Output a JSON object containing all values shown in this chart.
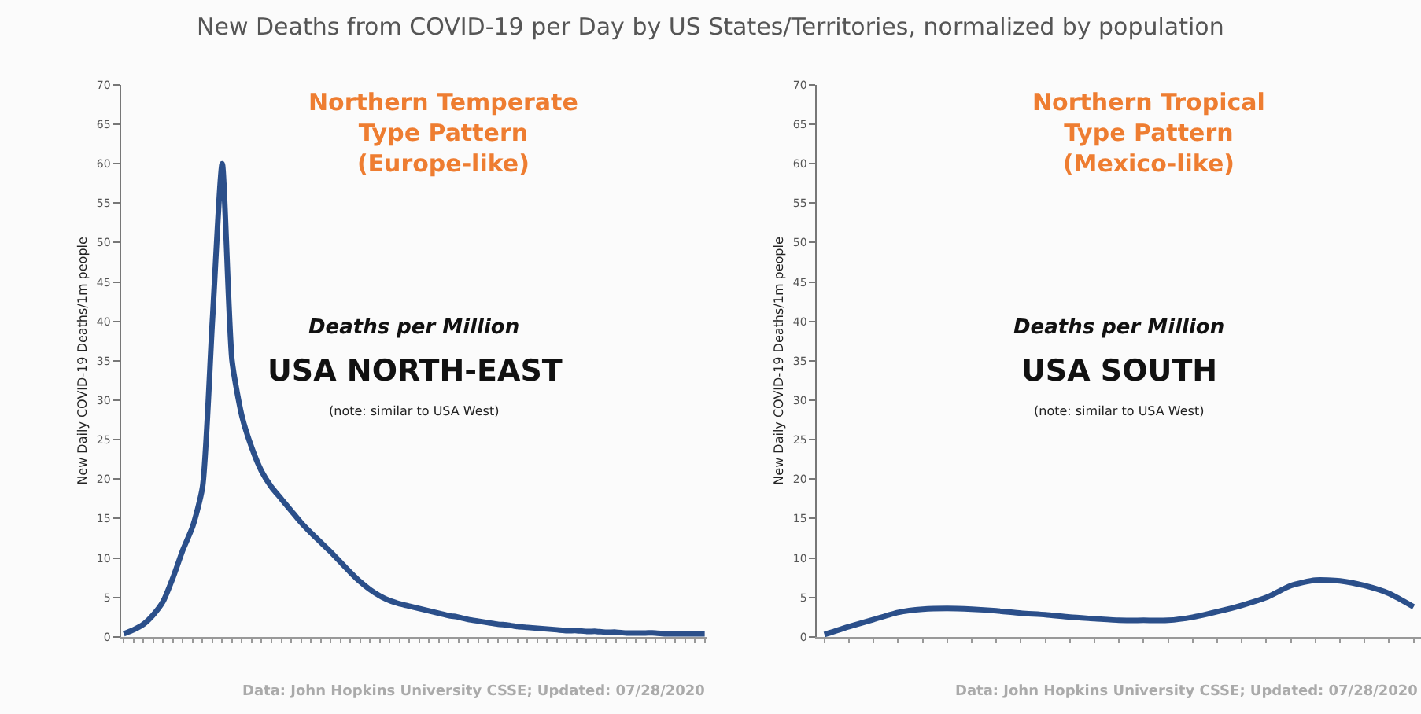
{
  "chart_data": [
    {
      "type": "line",
      "title": "New Deaths from COVID-19 per Day by US States/Territories, normalized by population",
      "ylabel": "New Daily COVID-19 Deaths/1m people",
      "categories": [
        null,
        null,
        null,
        null,
        null,
        null,
        null,
        null,
        null,
        null,
        null,
        null,
        null,
        null,
        null,
        null,
        null,
        null,
        null,
        null,
        null,
        null,
        null,
        null,
        null,
        null,
        null,
        null,
        null,
        null,
        null,
        null,
        null,
        null,
        null,
        null,
        null,
        null,
        null,
        null,
        null,
        null,
        null,
        null,
        null,
        null,
        null,
        null,
        null,
        null,
        null,
        null,
        null,
        null,
        null,
        null,
        null,
        null,
        null,
        null
      ],
      "series": [
        {
          "color": "#2b4f8a",
          "values": [
            0.4,
            0.9,
            1.6,
            2.8,
            4.5,
            7.5,
            11,
            14,
            19,
            40,
            60,
            35,
            28,
            24,
            21,
            19,
            17.5,
            16,
            14.5,
            13.2,
            12,
            10.8,
            9.5,
            8.2,
            7,
            6,
            5.2,
            4.6,
            4.2,
            3.9,
            3.6,
            3.3,
            3.0,
            2.7,
            2.5,
            2.2,
            2.0,
            1.8,
            1.6,
            1.5,
            1.3,
            1.2,
            1.1,
            1.0,
            0.9,
            0.8,
            0.8,
            0.7,
            0.7,
            0.6,
            0.6,
            0.5,
            0.5,
            0.5,
            0.5,
            0.4,
            0.4,
            0.4,
            0.4,
            0.4
          ]
        }
      ],
      "ylim": [
        0,
        70
      ],
      "yticks": [
        0,
        5,
        10,
        15,
        20,
        25,
        30,
        35,
        40,
        45,
        50,
        55,
        60,
        65,
        70
      ],
      "annotations": [
        "Northern Temperate\nType Pattern\n(Europe-like)",
        "Deaths per Million",
        "USA NORTH-EAST",
        "(note: similar to USA West)",
        "Data: John Hopkins University CSSE; Updated: 07/28/2020"
      ]
    },
    {
      "type": "line",
      "ylabel": "New Daily COVID-19 Deaths/1m people",
      "categories": [
        null,
        null,
        null,
        null,
        null,
        null,
        null,
        null,
        null,
        null,
        null,
        null,
        null,
        null,
        null,
        null,
        null,
        null,
        null,
        null,
        null,
        null,
        null,
        null,
        null
      ],
      "series": [
        {
          "color": "#2b4f8a",
          "values": [
            0.3,
            1.3,
            2.2,
            3.1,
            3.5,
            3.6,
            3.5,
            3.3,
            3.0,
            2.8,
            2.5,
            2.3,
            2.1,
            2.1,
            2.1,
            2.5,
            3.2,
            4.0,
            5.0,
            6.5,
            7.2,
            7.1,
            6.5,
            5.5,
            3.8
          ]
        }
      ],
      "ylim": [
        0,
        70
      ],
      "yticks": [
        0,
        5,
        10,
        15,
        20,
        25,
        30,
        35,
        40,
        45,
        50,
        55,
        60,
        65,
        70
      ],
      "annotations": [
        "Northern Tropical\nType Pattern\n(Mexico-like)",
        "Deaths per Million",
        "USA SOUTH",
        "(note: similar to USA West)",
        "Data: John Hopkins University CSSE; Updated: 07/28/2020"
      ]
    }
  ]
}
